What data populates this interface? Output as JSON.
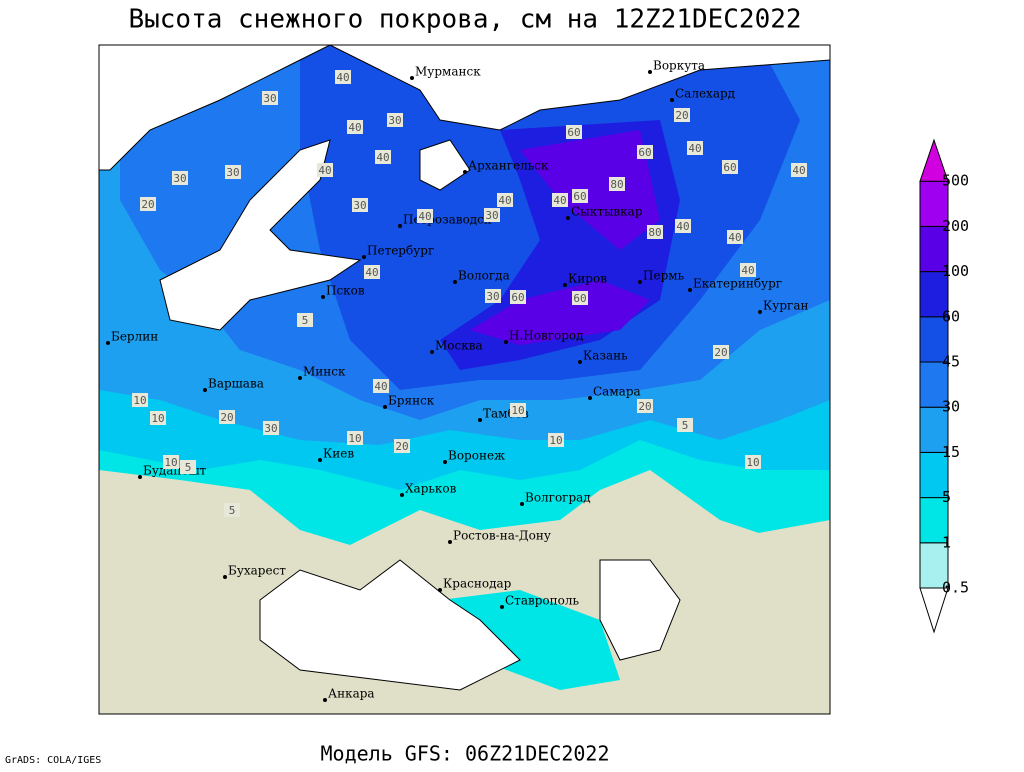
{
  "title": "Высота снежного покрова, см на 12Z21DEC2022",
  "footer": "Модель GFS: 06Z21DEC2022",
  "credit": "GrADS: COLA/IGES",
  "legend": {
    "levels": [
      0.5,
      1,
      5,
      15,
      30,
      45,
      60,
      100,
      200,
      500
    ],
    "colors": [
      "#ffffff",
      "#a8f0f0",
      "#00e6e6",
      "#00c8f0",
      "#1ea0f0",
      "#1e78f0",
      "#1450e6",
      "#1e1ee0",
      "#5a00e6",
      "#a000f0",
      "#d000e0"
    ]
  },
  "cities": [
    "Мурманск",
    "Воркута",
    "Салехард",
    "Архангельск",
    "Сыктывкар",
    "Петрозаводск",
    "Петербург",
    "Вологда",
    "Киров",
    "Пермь",
    "Екатеринбург",
    "Курган",
    "Псков",
    "Берлин",
    "Москва",
    "Н.Новгород",
    "Казань",
    "Варшава",
    "Минск",
    "Брянск",
    "Тамбов",
    "Самара",
    "Киев",
    "Воронеж",
    "Будапешт",
    "Харьков",
    "Волгоград",
    "Ростов-на-Дону",
    "Бухарест",
    "Краснодар",
    "Ставрополь",
    "Анкара"
  ],
  "contour_labels": [
    "40",
    "30",
    "40",
    "30",
    "40",
    "30",
    "20",
    "30",
    "40",
    "30",
    "40",
    "60",
    "80",
    "60",
    "40",
    "60",
    "40",
    "40",
    "30",
    "40",
    "60",
    "80",
    "40",
    "40",
    "20",
    "30",
    "40",
    "60",
    "60",
    "40",
    "40",
    "20",
    "5",
    "10",
    "20",
    "30",
    "10",
    "20",
    "10",
    "10",
    "5",
    "10",
    "10",
    "5",
    "10",
    "20",
    "5"
  ]
}
